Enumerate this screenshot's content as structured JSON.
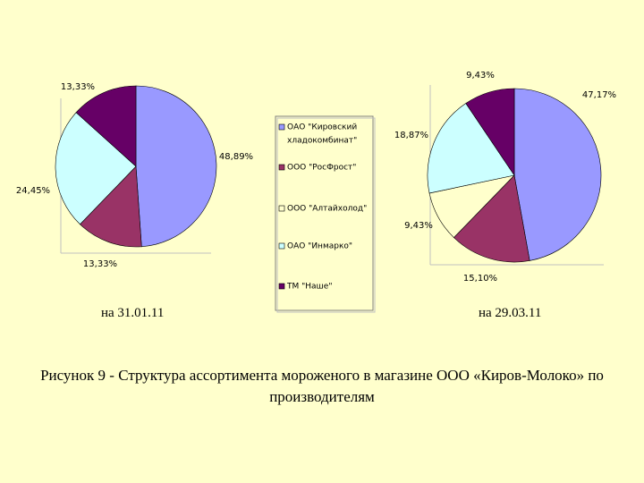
{
  "chart_data": [
    {
      "type": "pie",
      "date_label": "на 31.01.11",
      "slices": [
        {
          "producer": "ОАО \"Кировский хладокомбинат\"",
          "value": 48.89,
          "label": "48,89%"
        },
        {
          "producer": "ООО \"РосФрост\"",
          "value": 13.33,
          "label": "13,33%"
        },
        {
          "producer": "ООО \"Алтайхолод\"",
          "value": 0,
          "label": ""
        },
        {
          "producer": "ОАО \"Инмарко\"",
          "value": 24.45,
          "label": "24,45%"
        },
        {
          "producer": "ТМ \"Наше\"",
          "value": 13.33,
          "label": "13,33%"
        }
      ]
    },
    {
      "type": "pie",
      "date_label": "на 29.03.11",
      "slices": [
        {
          "producer": "ОАО \"Кировский хладокомбинат\"",
          "value": 47.17,
          "label": "47,17%"
        },
        {
          "producer": "ООО \"РосФрост\"",
          "value": 15.1,
          "label": "15,10%"
        },
        {
          "producer": "ООО \"Алтайхолод\"",
          "value": 9.43,
          "label": "9,43%"
        },
        {
          "producer": "ОАО \"Инмарко\"",
          "value": 18.87,
          "label": "18,87%"
        },
        {
          "producer": "ТМ \"Наше\"",
          "value": 9.43,
          "label": "9,43%"
        }
      ]
    }
  ],
  "legend": {
    "position": "center",
    "items": [
      {
        "lines": [
          "ОАО \"Кировский",
          "хладокомбинат\""
        ],
        "color": "#9999ff"
      },
      {
        "lines": [
          "ООО \"РосФрост\""
        ],
        "color": "#993366"
      },
      {
        "lines": [
          "ООО \"Алтайхолод\""
        ],
        "color": "#ffffcc"
      },
      {
        "lines": [
          "ОАО \"Инмарко\""
        ],
        "color": "#ccffff"
      },
      {
        "lines": [
          "ТМ \"Наше\""
        ],
        "color": "#660066"
      }
    ]
  },
  "caption": "Рисунок 9 - Структура ассортимента мороженого в магазине ООО «Киров-Молоко» по производителям"
}
